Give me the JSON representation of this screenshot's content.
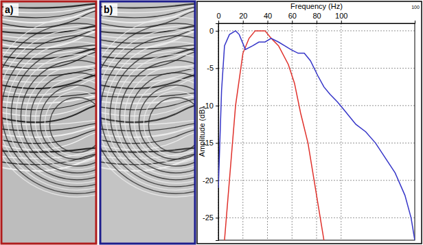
{
  "chart_data": {
    "type": "line",
    "x_label": "Frequency (Hz)",
    "y_label": "Amplitude (dB)",
    "corner_label": "100",
    "xlim": [
      0,
      160
    ],
    "xticks": [
      0,
      20,
      40,
      60,
      80,
      100
    ],
    "ylim": [
      -28,
      1
    ],
    "yticks": [
      0,
      -5,
      -10,
      -15,
      -20,
      -25
    ],
    "grid": true,
    "series": [
      {
        "color": "#e0312b",
        "x": [
          5,
          9,
          14,
          20,
          25,
          30,
          38,
          43,
          49,
          57,
          62,
          67,
          73,
          78,
          83,
          86
        ],
        "values": [
          -28,
          -20,
          -10,
          -3,
          -1,
          0,
          0,
          -1,
          -2,
          -4.5,
          -7,
          -11,
          -15,
          -20,
          -25,
          -28
        ]
      },
      {
        "color": "#3535c8",
        "x": [
          0,
          2.6,
          5,
          9,
          14,
          17,
          22,
          28,
          33,
          38,
          43,
          49,
          54,
          59,
          65,
          70,
          75,
          81,
          86,
          91,
          97,
          102,
          107,
          112,
          120,
          128,
          136,
          144,
          152,
          157,
          160
        ],
        "values": [
          -21,
          -8,
          -2,
          -0.5,
          0,
          -0.5,
          -2.5,
          -2,
          -1.5,
          -1.5,
          -1,
          -1.5,
          -2,
          -2.5,
          -3,
          -3,
          -4,
          -6,
          -7.5,
          -8.5,
          -9.5,
          -10.5,
          -11.5,
          -12.5,
          -13.5,
          -15,
          -17,
          -19,
          -22,
          -25,
          -28
        ]
      }
    ]
  },
  "panels": [
    {
      "label": "a)",
      "color": "#b01c1c"
    },
    {
      "label": "b)",
      "color": "#1d1d8c"
    }
  ]
}
